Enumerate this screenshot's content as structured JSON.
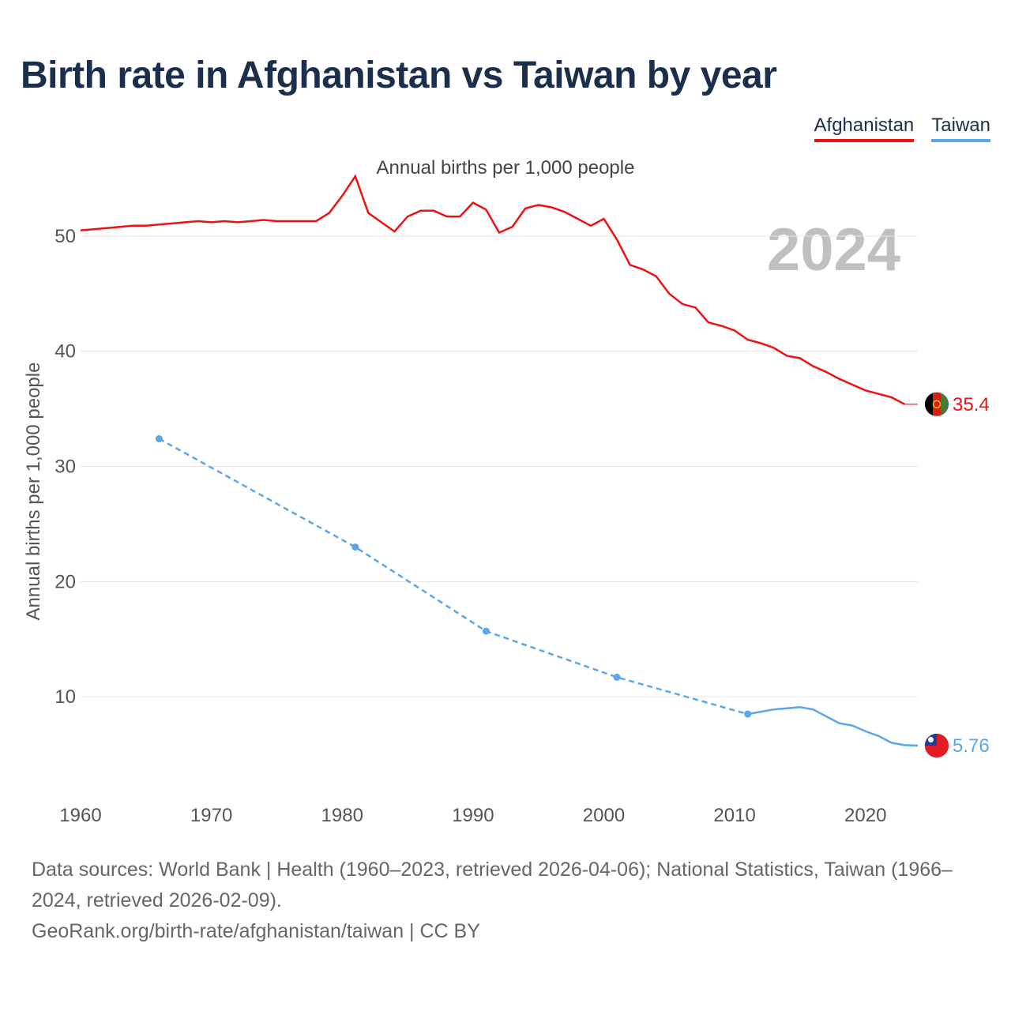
{
  "title": "Birth rate in Afghanistan vs Taiwan by year",
  "legend": [
    {
      "label": "Afghanistan",
      "color": "#ee1111"
    },
    {
      "label": "Taiwan",
      "color": "#5aa6e8"
    }
  ],
  "footer": {
    "sources": "Data sources: World Bank | Health (1960–2023, retrieved 2026-04-06); National Statistics, Taiwan (1966–2024, retrieved 2026-02-09).",
    "credit": "GeoRank.org/birth-rate/afghanistan/taiwan | CC BY"
  },
  "chart_data": {
    "type": "line",
    "title": "Annual births per 1,000 people",
    "ylabel": "Annual births per 1,000 people",
    "xlabel": "",
    "year_watermark": "2024",
    "xlim": [
      1960,
      2024
    ],
    "ylim": [
      0,
      55
    ],
    "x_ticks": [
      1960,
      1970,
      1980,
      1990,
      2000,
      2010,
      2020
    ],
    "y_ticks": [
      10,
      20,
      30,
      40,
      50
    ],
    "series": [
      {
        "name": "Afghanistan",
        "color": "#ee1111",
        "end_label": "35.4",
        "flag_icon": "afghanistan-flag-icon",
        "points": [
          [
            1960,
            50.5
          ],
          [
            1961,
            50.6
          ],
          [
            1962,
            50.7
          ],
          [
            1963,
            50.8
          ],
          [
            1964,
            50.9
          ],
          [
            1965,
            50.9
          ],
          [
            1966,
            51.0
          ],
          [
            1967,
            51.1
          ],
          [
            1968,
            51.2
          ],
          [
            1969,
            51.3
          ],
          [
            1970,
            51.2
          ],
          [
            1971,
            51.3
          ],
          [
            1972,
            51.2
          ],
          [
            1973,
            51.3
          ],
          [
            1974,
            51.4
          ],
          [
            1975,
            51.3
          ],
          [
            1976,
            51.3
          ],
          [
            1977,
            51.3
          ],
          [
            1978,
            51.3
          ],
          [
            1979,
            52.0
          ],
          [
            1980,
            53.5
          ],
          [
            1981,
            55.2
          ],
          [
            1982,
            52.0
          ],
          [
            1983,
            51.2
          ],
          [
            1984,
            50.4
          ],
          [
            1985,
            51.7
          ],
          [
            1986,
            52.2
          ],
          [
            1987,
            52.2
          ],
          [
            1988,
            51.7
          ],
          [
            1989,
            51.7
          ],
          [
            1990,
            52.9
          ],
          [
            1991,
            52.3
          ],
          [
            1992,
            50.3
          ],
          [
            1993,
            50.8
          ],
          [
            1994,
            52.4
          ],
          [
            1995,
            52.7
          ],
          [
            1996,
            52.5
          ],
          [
            1997,
            52.1
          ],
          [
            1998,
            51.5
          ],
          [
            1999,
            50.9
          ],
          [
            2000,
            51.5
          ],
          [
            2001,
            49.7
          ],
          [
            2002,
            47.5
          ],
          [
            2003,
            47.1
          ],
          [
            2004,
            46.5
          ],
          [
            2005,
            45.0
          ],
          [
            2006,
            44.1
          ],
          [
            2007,
            43.8
          ],
          [
            2008,
            42.5
          ],
          [
            2009,
            42.2
          ],
          [
            2010,
            41.8
          ],
          [
            2011,
            41.0
          ],
          [
            2012,
            40.7
          ],
          [
            2013,
            40.3
          ],
          [
            2014,
            39.6
          ],
          [
            2015,
            39.4
          ],
          [
            2016,
            38.7
          ],
          [
            2017,
            38.2
          ],
          [
            2018,
            37.6
          ],
          [
            2019,
            37.1
          ],
          [
            2020,
            36.6
          ],
          [
            2021,
            36.3
          ],
          [
            2022,
            36.0
          ],
          [
            2023,
            35.4
          ],
          [
            2024,
            35.4
          ]
        ]
      },
      {
        "name": "Taiwan",
        "color": "#5aa6e8",
        "end_label": "5.76",
        "flag_icon": "taiwan-flag-icon",
        "marker_years": [
          1966,
          1981,
          1991,
          2001,
          2011
        ],
        "points": [
          [
            1966,
            32.4
          ],
          [
            1981,
            23.0
          ],
          [
            1991,
            15.7
          ],
          [
            2001,
            11.7
          ],
          [
            2011,
            8.5
          ],
          [
            2012,
            8.7
          ],
          [
            2013,
            8.9
          ],
          [
            2014,
            9.0
          ],
          [
            2015,
            9.1
          ],
          [
            2016,
            8.9
          ],
          [
            2017,
            8.3
          ],
          [
            2018,
            7.7
          ],
          [
            2019,
            7.5
          ],
          [
            2020,
            7.0
          ],
          [
            2021,
            6.6
          ],
          [
            2022,
            6.0
          ],
          [
            2023,
            5.8
          ],
          [
            2024,
            5.76
          ]
        ]
      }
    ]
  }
}
